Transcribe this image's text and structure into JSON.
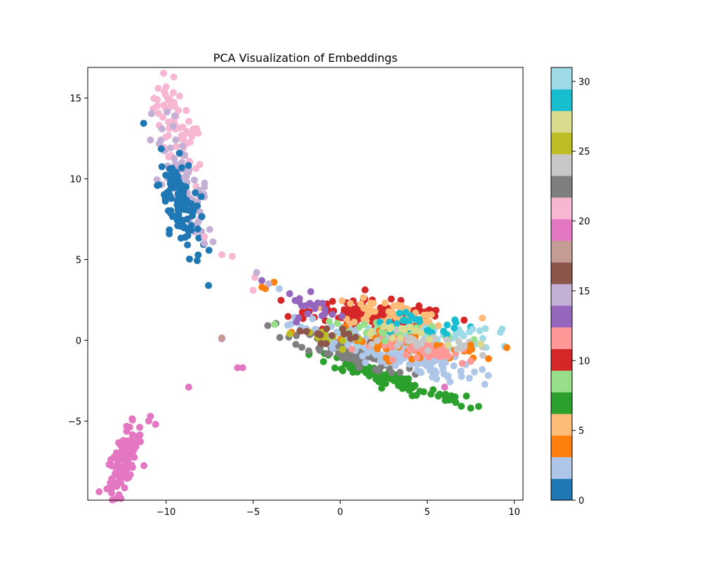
{
  "chart_data": {
    "type": "scatter",
    "title": "PCA Visualization of Embeddings",
    "xlabel": "",
    "ylabel": "",
    "xlim": [
      -14.5,
      10.5
    ],
    "ylim": [
      -9.9,
      16.9
    ],
    "x_ticks": [
      -10,
      -5,
      0,
      5,
      10
    ],
    "y_ticks": [
      -5,
      0,
      5,
      10,
      15
    ],
    "x_tick_labels": [
      "−10",
      "−5",
      "0",
      "5",
      "10"
    ],
    "y_tick_labels": [
      "−5",
      "0",
      "5",
      "10",
      "15"
    ],
    "grid": false,
    "colormap": "tab20",
    "colorbar": {
      "range": [
        0,
        31
      ],
      "ticks": [
        0,
        5,
        10,
        15,
        20,
        25,
        30
      ],
      "tick_labels": [
        "0",
        "5",
        "10",
        "15",
        "20",
        "25",
        "30"
      ],
      "colors": [
        "#1f77b4",
        "#aec7e8",
        "#ff7f0e",
        "#ffbb78",
        "#2ca02c",
        "#98df8a",
        "#d62728",
        "#ff9896",
        "#9467bd",
        "#c5b0d5",
        "#8c564b",
        "#c49c94",
        "#e377c2",
        "#f7b6d2",
        "#7f7f7f",
        "#c7c7c7",
        "#bcbd22",
        "#dbdb8d",
        "#17becf",
        "#9edae5"
      ]
    },
    "clusters": [
      {
        "color": "#f7b6d2",
        "center": [
          -9.3,
          12.6
        ],
        "spread": [
          0.7,
          1.6
        ],
        "slope": -1.8,
        "count": 70
      },
      {
        "color": "#c5b0d5",
        "center": [
          -9.0,
          9.6
        ],
        "spread": [
          0.8,
          1.4
        ],
        "slope": -1.6,
        "count": 60
      },
      {
        "color": "#1f77b4",
        "center": [
          -9.2,
          8.6
        ],
        "spread": [
          0.6,
          1.3
        ],
        "slope": -1.6,
        "count": 110
      },
      {
        "color": "#e377c2",
        "center": [
          -12.4,
          -7.4
        ],
        "spread": [
          0.5,
          0.8
        ],
        "slope": 1.5,
        "count": 110
      },
      {
        "color": "#d62728",
        "center": [
          2.3,
          1.4
        ],
        "spread": [
          2.0,
          0.5
        ],
        "slope": -0.1,
        "count": 150
      },
      {
        "color": "#ffbb78",
        "center": [
          2.8,
          1.6
        ],
        "spread": [
          1.7,
          0.4
        ],
        "slope": -0.1,
        "count": 60
      },
      {
        "color": "#2ca02c",
        "center": [
          2.8,
          -2.4
        ],
        "spread": [
          2.2,
          0.25
        ],
        "slope": -0.35,
        "count": 110
      },
      {
        "color": "#7f7f7f",
        "center": [
          0.5,
          -0.8
        ],
        "spread": [
          1.6,
          0.35
        ],
        "slope": -0.35,
        "count": 80
      },
      {
        "color": "#aec7e8",
        "center": [
          2.6,
          -0.7
        ],
        "spread": [
          2.5,
          0.45
        ],
        "slope": -0.28,
        "count": 150
      },
      {
        "color": "#9edae5",
        "center": [
          4.5,
          0.2
        ],
        "spread": [
          2.3,
          0.35
        ],
        "slope": -0.05,
        "count": 70
      },
      {
        "color": "#ff7f0e",
        "center": [
          3.8,
          -0.3
        ],
        "spread": [
          2.2,
          0.35
        ],
        "slope": -0.1,
        "count": 60
      },
      {
        "color": "#ff9896",
        "center": [
          5.2,
          -0.7
        ],
        "spread": [
          1.6,
          0.3
        ],
        "slope": -0.15,
        "count": 40
      },
      {
        "color": "#98df8a",
        "center": [
          3.0,
          0.6
        ],
        "spread": [
          1.8,
          0.3
        ],
        "slope": -0.05,
        "count": 30
      },
      {
        "color": "#17becf",
        "center": [
          4.5,
          1.0
        ],
        "spread": [
          1.8,
          0.3
        ],
        "slope": -0.1,
        "count": 25
      },
      {
        "color": "#9467bd",
        "center": [
          -1.5,
          2.0
        ],
        "spread": [
          0.8,
          0.4
        ],
        "slope": -0.3,
        "count": 20
      },
      {
        "color": "#bcbd22",
        "center": [
          -0.5,
          0.0
        ],
        "spread": [
          1.0,
          0.3
        ],
        "slope": -0.2,
        "count": 15
      },
      {
        "color": "#8c564b",
        "center": [
          -1.0,
          0.5
        ],
        "spread": [
          1.0,
          0.3
        ],
        "slope": -0.2,
        "count": 15
      },
      {
        "color": "#c7c7c7",
        "center": [
          5.0,
          -0.2
        ],
        "spread": [
          1.6,
          0.3
        ],
        "slope": -0.1,
        "count": 25
      },
      {
        "color": "#dbdb8d",
        "center": [
          4.0,
          0.4
        ],
        "spread": [
          1.5,
          0.3
        ],
        "slope": -0.1,
        "count": 15
      }
    ],
    "points": [
      {
        "x": -6.8,
        "y": 5.3,
        "color": "#f7b6d2"
      },
      {
        "x": -6.2,
        "y": 5.2,
        "color": "#f7b6d2"
      },
      {
        "x": -4.9,
        "y": 3.9,
        "color": "#f7b6d2"
      },
      {
        "x": -5.0,
        "y": 3.1,
        "color": "#f7b6d2"
      },
      {
        "x": -4.8,
        "y": 4.2,
        "color": "#c5b0d5"
      },
      {
        "x": -4.5,
        "y": 3.7,
        "color": "#9467bd"
      },
      {
        "x": -4.5,
        "y": 3.3,
        "color": "#ff7f0e"
      },
      {
        "x": -4.3,
        "y": 3.2,
        "color": "#ff7f0e"
      },
      {
        "x": -3.8,
        "y": 3.6,
        "color": "#ff7f0e"
      },
      {
        "x": -3.5,
        "y": 3.2,
        "color": "#aec7e8"
      },
      {
        "x": -4.1,
        "y": 3.5,
        "color": "#c5b0d5"
      },
      {
        "x": -6.8,
        "y": 0.1,
        "color": "#e377c2"
      },
      {
        "x": -6.8,
        "y": 0.15,
        "color": "#c49c94"
      },
      {
        "x": -5.9,
        "y": -1.7,
        "color": "#e377c2"
      },
      {
        "x": -5.6,
        "y": -1.7,
        "color": "#e377c2"
      },
      {
        "x": -8.7,
        "y": -2.9,
        "color": "#e377c2"
      },
      {
        "x": -10.6,
        "y": -5.2,
        "color": "#e377c2"
      },
      {
        "x": -10.9,
        "y": -4.7,
        "color": "#e377c2"
      },
      {
        "x": -11.0,
        "y": -5.0,
        "color": "#e377c2"
      },
      {
        "x": 9.3,
        "y": 0.7,
        "color": "#9edae5"
      },
      {
        "x": 9.2,
        "y": 0.5,
        "color": "#9edae5"
      },
      {
        "x": 7.6,
        "y": 0.7,
        "color": "#9edae5"
      },
      {
        "x": 7.5,
        "y": -0.3,
        "color": "#ff7f0e"
      },
      {
        "x": 7.5,
        "y": -1.3,
        "color": "#ff9896"
      },
      {
        "x": 6.6,
        "y": -3.5,
        "color": "#2ca02c"
      },
      {
        "x": 6.0,
        "y": -2.9,
        "color": "#e377c2"
      },
      {
        "x": -10.0,
        "y": 15.7,
        "color": "#f7b6d2"
      },
      {
        "x": -10.1,
        "y": 15.4,
        "color": "#f7b6d2"
      },
      {
        "x": -10.5,
        "y": 14.9,
        "color": "#f7b6d2"
      },
      {
        "x": -10.9,
        "y": 12.4,
        "color": "#c5b0d5"
      },
      {
        "x": -10.3,
        "y": 12.4,
        "color": "#c5b0d5"
      },
      {
        "x": -7.8,
        "y": 9.5,
        "color": "#c5b0d5"
      },
      {
        "x": -7.8,
        "y": 6.0,
        "color": "#c5b0d5"
      },
      {
        "x": -7.8,
        "y": 6.4,
        "color": "#f7b6d2"
      },
      {
        "x": -8.5,
        "y": 12.8,
        "color": "#f7b6d2"
      }
    ]
  }
}
